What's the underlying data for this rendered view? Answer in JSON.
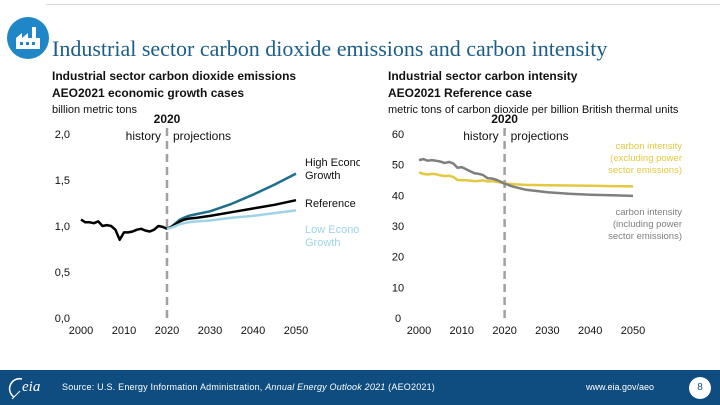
{
  "header": {
    "title": "Industrial sector carbon dioxide emissions and carbon intensity",
    "icon": "factory-icon"
  },
  "left": {
    "subtitle_line1": "Industrial sector carbon dioxide emissions",
    "subtitle_line2": "AEO2021 economic growth cases",
    "unit": "billion metric tons"
  },
  "right": {
    "subtitle_line1": "Industrial sector carbon intensity",
    "subtitle_line2": "AEO2021 Reference case",
    "unit": "metric tons of carbon dioxide per billion British thermal units"
  },
  "footer": {
    "source_prefix": "Source: U.S. Energy Information Administration, ",
    "source_italic": "Annual Energy Outlook 2021",
    "source_suffix": " (AEO2021)",
    "url": "www.eia.gov/aeo",
    "page": "8",
    "logo_text": "eia"
  },
  "chart_data": [
    {
      "type": "line",
      "xlim": [
        2000,
        2050
      ],
      "ylim": [
        0,
        2
      ],
      "x_ticks": [
        2000,
        2010,
        2020,
        2030,
        2040,
        2050
      ],
      "y_ticks": [
        0,
        0.5,
        1,
        1.5,
        2
      ],
      "y_tick_labels": [
        "0,0",
        "0,5",
        "1,0",
        "1,5",
        "2,0"
      ],
      "divider": {
        "x": 2020,
        "label": "2020",
        "left_label": "history",
        "right_label": "projections"
      },
      "grid": false,
      "series": [
        {
          "name": "history",
          "color": "#000000",
          "x": [
            2000,
            2001,
            2002,
            2003,
            2004,
            2005,
            2006,
            2007,
            2008,
            2009,
            2010,
            2011,
            2012,
            2013,
            2014,
            2015,
            2016,
            2017,
            2018,
            2019,
            2020
          ],
          "y": [
            1.07,
            1.04,
            1.04,
            1.03,
            1.05,
            1.0,
            1.01,
            1.0,
            0.96,
            0.85,
            0.93,
            0.93,
            0.94,
            0.96,
            0.97,
            0.95,
            0.94,
            0.96,
            1.0,
            0.99,
            0.97
          ]
        },
        {
          "name": "High Economic Growth",
          "color": "#1f6e8c",
          "x": [
            2020,
            2021,
            2022,
            2023,
            2024,
            2025,
            2027,
            2030,
            2035,
            2040,
            2045,
            2050
          ],
          "y": [
            0.97,
            0.99,
            1.03,
            1.07,
            1.09,
            1.11,
            1.13,
            1.16,
            1.24,
            1.34,
            1.45,
            1.57
          ]
        },
        {
          "name": "Reference",
          "color": "#000000",
          "x": [
            2020,
            2021,
            2022,
            2023,
            2024,
            2025,
            2027,
            2030,
            2035,
            2040,
            2045,
            2050
          ],
          "y": [
            0.97,
            0.99,
            1.02,
            1.05,
            1.07,
            1.08,
            1.09,
            1.11,
            1.15,
            1.19,
            1.23,
            1.28
          ]
        },
        {
          "name": "Low Economic Growth",
          "color": "#9fd4e6",
          "x": [
            2020,
            2021,
            2022,
            2023,
            2024,
            2025,
            2027,
            2030,
            2035,
            2040,
            2045,
            2050
          ],
          "y": [
            0.97,
            0.98,
            1.0,
            1.02,
            1.03,
            1.04,
            1.05,
            1.06,
            1.09,
            1.11,
            1.14,
            1.17
          ]
        }
      ]
    },
    {
      "type": "line",
      "xlim": [
        2000,
        2050
      ],
      "ylim": [
        0,
        60
      ],
      "x_ticks": [
        2000,
        2010,
        2020,
        2030,
        2040,
        2050
      ],
      "y_ticks": [
        0,
        10,
        20,
        30,
        40,
        50,
        60
      ],
      "y_tick_labels": [
        "0",
        "10",
        "20",
        "30",
        "40",
        "50",
        "60"
      ],
      "divider": {
        "x": 2020,
        "label": "2020",
        "left_label": "history",
        "right_label": "projections"
      },
      "grid": false,
      "series": [
        {
          "name": "carbon intensity (excluding power sector emissions)",
          "color": "#e3c840",
          "x": [
            2000,
            2001,
            2002,
            2003,
            2004,
            2005,
            2006,
            2007,
            2008,
            2009,
            2010,
            2011,
            2012,
            2013,
            2014,
            2015,
            2016,
            2017,
            2018,
            2019,
            2020,
            2022,
            2025,
            2030,
            2035,
            2040,
            2045,
            2050
          ],
          "y": [
            47.5,
            47.0,
            46.8,
            47.0,
            46.9,
            46.5,
            46.3,
            46.4,
            46.0,
            45.0,
            44.9,
            44.9,
            44.8,
            44.6,
            44.7,
            44.9,
            44.5,
            44.6,
            44.4,
            44.2,
            43.9,
            43.6,
            43.4,
            43.3,
            43.2,
            43.1,
            43.0,
            42.9
          ]
        },
        {
          "name": "carbon intensity (including power sector emissions)",
          "color": "#7f7f7f",
          "x": [
            2000,
            2001,
            2002,
            2003,
            2004,
            2005,
            2006,
            2007,
            2008,
            2009,
            2010,
            2011,
            2012,
            2013,
            2014,
            2015,
            2016,
            2017,
            2018,
            2019,
            2020,
            2022,
            2025,
            2030,
            2035,
            2040,
            2045,
            2050
          ],
          "y": [
            51.5,
            51.8,
            51.3,
            51.5,
            51.3,
            51.0,
            50.5,
            50.9,
            50.4,
            49.0,
            49.2,
            48.5,
            47.8,
            47.2,
            47.0,
            46.6,
            45.6,
            45.5,
            45.1,
            44.5,
            43.8,
            42.8,
            41.8,
            41.0,
            40.5,
            40.2,
            40.0,
            39.8
          ]
        }
      ]
    }
  ]
}
